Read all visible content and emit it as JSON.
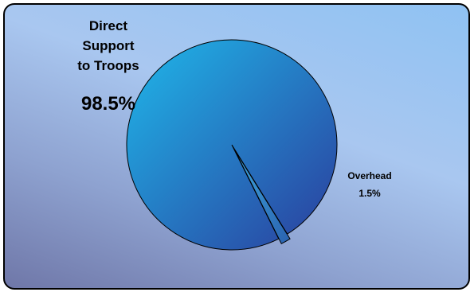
{
  "chart_data": {
    "type": "pie",
    "slices": [
      {
        "label_lines": [
          "Direct",
          "Support",
          "to Troops"
        ],
        "value": 98.5,
        "value_label": "98.5%",
        "color": "#1fb8ea",
        "color_dark": "#2b3c9c"
      },
      {
        "label_lines": [
          "Overhead"
        ],
        "value": 1.5,
        "value_label": "1.5%",
        "color": "#3ea6dc",
        "color_dark": "#2a62b0",
        "exploded": true
      }
    ],
    "legend": "none",
    "colors": {
      "frame_border": "#000000",
      "background_light": "#9ec8f2",
      "background_dark": "#6f77a8"
    }
  }
}
